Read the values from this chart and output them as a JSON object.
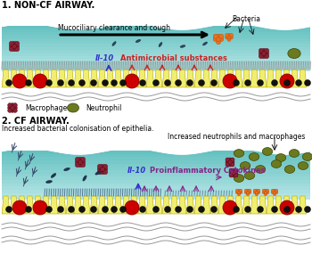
{
  "title1": "1. NON-CF AIRWAY.",
  "title2": "2. CF AIRWAY.",
  "subtitle2a": "Increased bacterial colonisation of epithelia.",
  "subtitle2b": "Increased neutrophils and macrophages",
  "label_bacteria": "Bacteria",
  "label_mucociliary": "Mucociliary clearance and cough",
  "label_il10_1": "Il-10",
  "label_antimicrobial": "Antimicrobial substances",
  "label_macrophage": "Macrophage",
  "label_neutrophil": "Neutrophil",
  "label_il10_2": "Il-10",
  "label_proinflammatory": "Proinflammatory Cytokines",
  "bg_color": "#ffffff",
  "mucus_color_top": "#a8e0e0",
  "mucus_color_bot": "#60c0c0",
  "epithelium_yellow": "#f0ee70",
  "epithelium_border": "#b8a800",
  "red_cell_color": "#cc0000",
  "black_cell_color": "#111111",
  "bacteria_orange": "#e87020",
  "neutrophil_olive": "#6b7a20",
  "macrophage_red": "#882233",
  "il10_color": "#3333cc",
  "antimicrobial_color": "#cc2222",
  "proinflammatory_color": "#882288",
  "dashed_color": "#334466",
  "wave_color": "#999999",
  "rod_color": "#334466"
}
